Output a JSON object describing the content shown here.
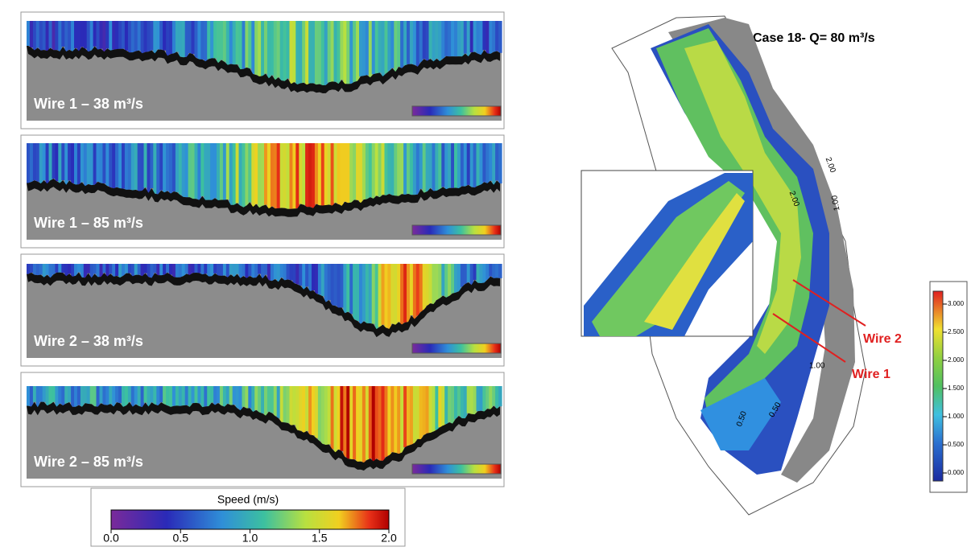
{
  "panels": [
    {
      "label": "Wire 1 – 38 m³/s"
    },
    {
      "label": "Wire 1 – 85 m³/s"
    },
    {
      "label": "Wire 2 – 38 m³/s"
    },
    {
      "label": "Wire 2 – 85 m³/s"
    }
  ],
  "speed_colorbar": {
    "title": "Speed (m/s)",
    "ticks": [
      "0.0",
      "0.5",
      "1.0",
      "1.5",
      "2.0"
    ]
  },
  "map": {
    "title": "Case 18- Q= 80 m³/s",
    "wire_labels": [
      "Wire 2",
      "Wire 1"
    ],
    "contour_labels": [
      "2.00",
      "2.00",
      "1.00",
      "1.00",
      "0.50",
      "0.50"
    ],
    "colorbar_ticks": [
      "3.000",
      "2.500",
      "2.000",
      "1.500",
      "1.000",
      "0.500",
      "0.000"
    ]
  }
}
